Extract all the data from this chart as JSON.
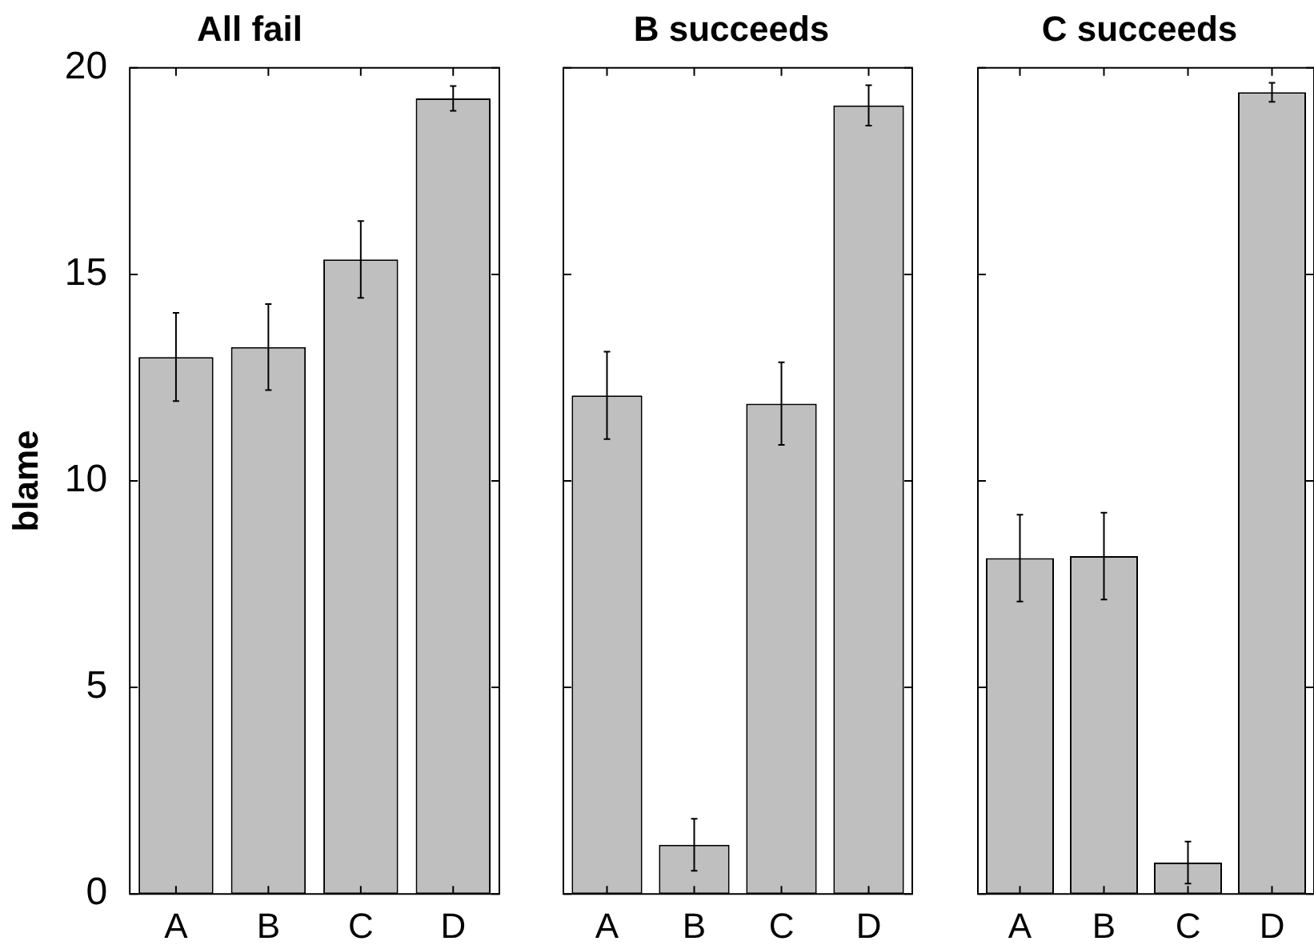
{
  "chart_data": [
    {
      "type": "bar",
      "title": "All fail",
      "ylabel": "blame",
      "categories": [
        "A",
        "B",
        "C",
        "D"
      ],
      "values": [
        13.0,
        13.24,
        15.36,
        19.26
      ],
      "errors": [
        1.07,
        1.04,
        0.93,
        0.3
      ],
      "color": "#bfbfbf",
      "ylim": [
        0,
        20
      ],
      "yticks": [
        0,
        5,
        10,
        15,
        20
      ]
    },
    {
      "type": "bar",
      "title": "B succeeds",
      "categories": [
        "A",
        "B",
        "C",
        "D"
      ],
      "values": [
        12.07,
        1.19,
        11.87,
        19.09
      ],
      "errors": [
        1.06,
        0.63,
        1.0,
        0.49
      ],
      "color": "#bfbfbf",
      "ylim": [
        0,
        20
      ],
      "yticks": [
        0,
        5,
        10,
        15,
        20
      ],
      "tick_labels": "x"
    },
    {
      "type": "bar",
      "title": "C succeeds",
      "categories": [
        "A",
        "B",
        "C",
        "D"
      ],
      "values": [
        8.13,
        8.18,
        0.76,
        19.41
      ],
      "errors": [
        1.05,
        1.05,
        0.51,
        0.23
      ],
      "color": "#bfbfbf",
      "ylim": [
        0,
        20
      ],
      "yticks": [
        0,
        5,
        10,
        15,
        20
      ],
      "tick_labels": "x"
    }
  ]
}
